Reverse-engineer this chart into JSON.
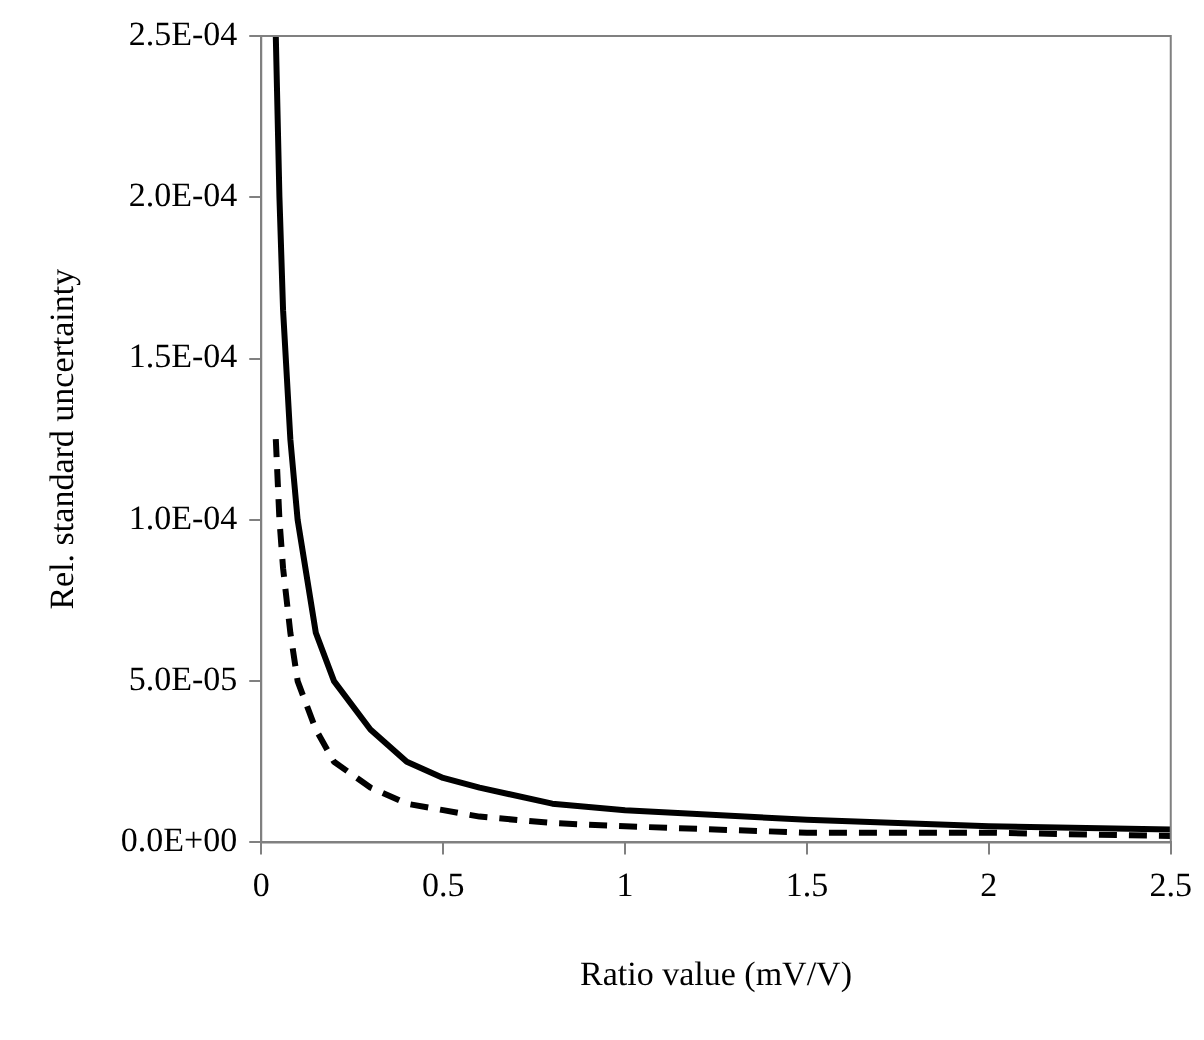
{
  "chart_data": {
    "type": "line",
    "xlabel": "Ratio value (mV/V)",
    "ylabel": "Rel. standard uncertainty",
    "x": [
      0.04,
      0.05,
      0.06,
      0.08,
      0.1,
      0.15,
      0.2,
      0.3,
      0.4,
      0.5,
      0.6,
      0.8,
      1,
      1.5,
      2,
      2.5
    ],
    "series": [
      {
        "color": "#000000",
        "line_style": "solid",
        "values": [
          0.00025,
          0.0002,
          0.000165,
          0.000125,
          0.0001,
          6.5e-05,
          5e-05,
          3.5e-05,
          2.5e-05,
          2e-05,
          1.7e-05,
          1.2e-05,
          1e-05,
          7e-06,
          5e-06,
          4e-06
        ]
      },
      {
        "color": "#000000",
        "line_style": "dashed",
        "values": [
          0.000125,
          0.0001,
          8.5e-05,
          6.5e-05,
          5e-05,
          3.5e-05,
          2.5e-05,
          1.7e-05,
          1.2e-05,
          1e-05,
          8e-06,
          6e-06,
          5e-06,
          3e-06,
          3e-06,
          2e-06
        ]
      }
    ],
    "xlim": [
      0,
      2.5
    ],
    "xticks": [
      0,
      0.5,
      1,
      1.5,
      2,
      2.5
    ],
    "ylim": [
      0,
      0.00025
    ],
    "yticks": [
      {
        "value": 0,
        "label": "0.0E+00"
      },
      {
        "value": 5e-05,
        "label": "5.0E-05"
      },
      {
        "value": 0.0001,
        "label": "1.0E-04"
      },
      {
        "value": 0.00015,
        "label": "1.5E-04"
      },
      {
        "value": 0.0002,
        "label": "2.0E-04"
      },
      {
        "value": 0.00025,
        "label": "2.5E-04"
      }
    ],
    "grid": false,
    "legend": false,
    "marker": "none"
  }
}
